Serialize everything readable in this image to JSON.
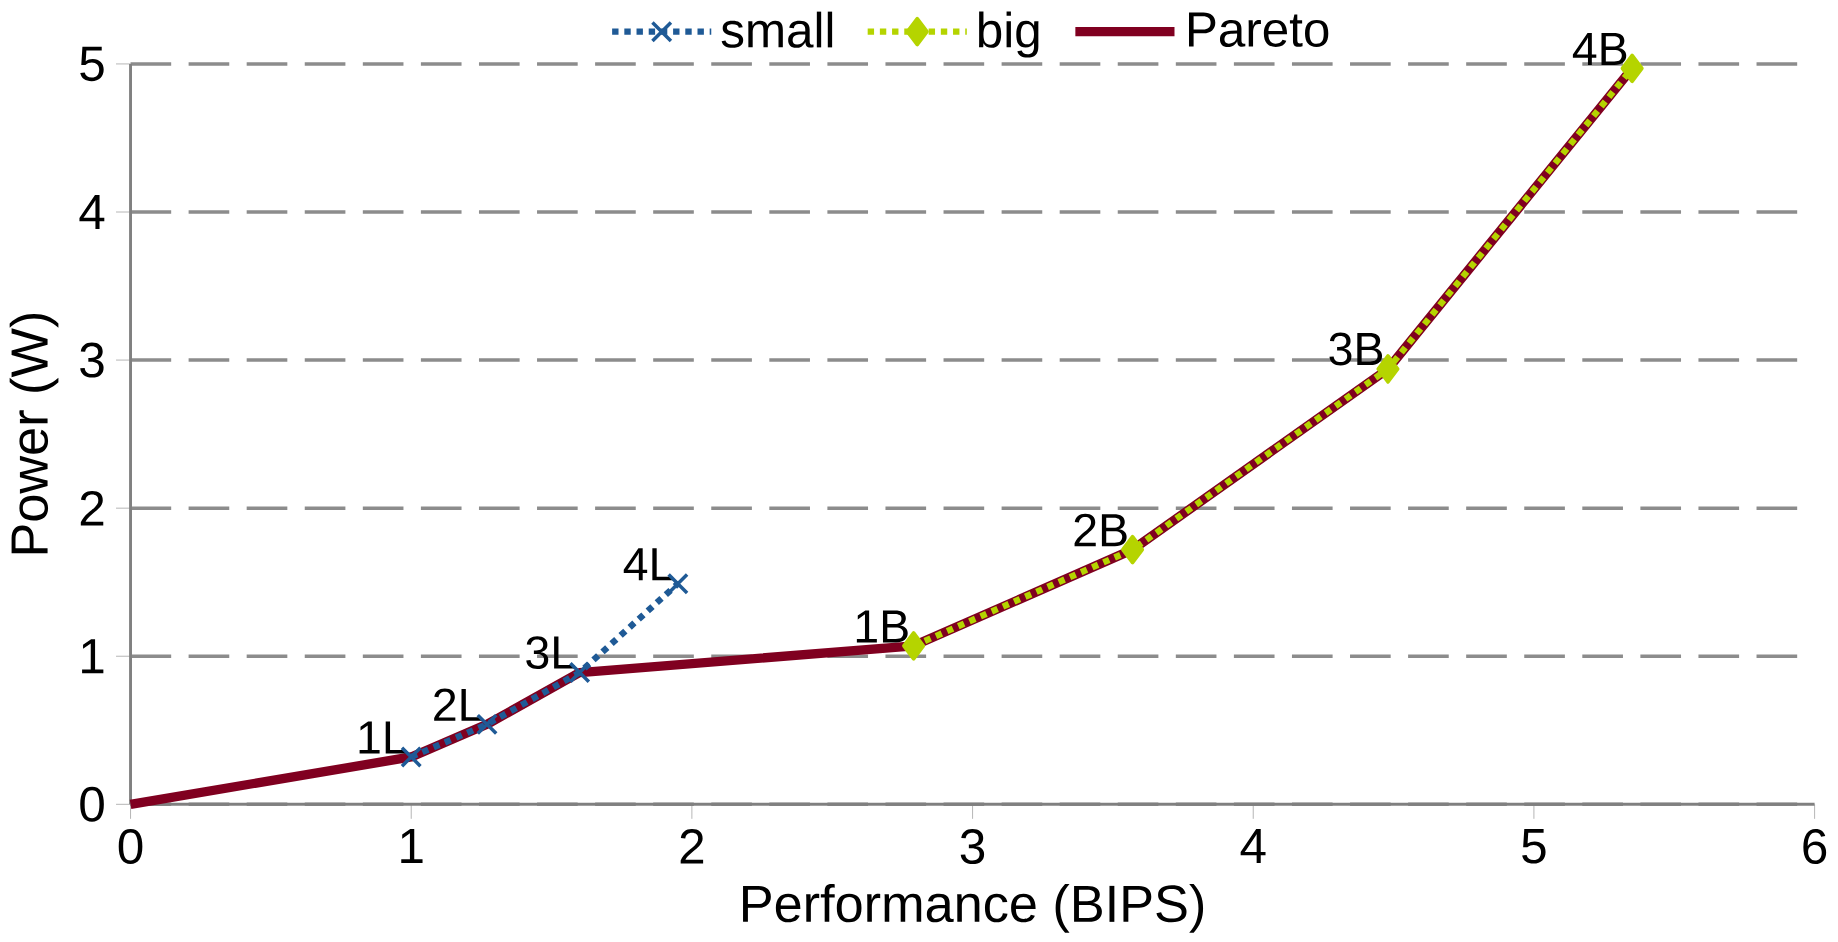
{
  "chart_data": {
    "type": "line",
    "xlabel": "Performance (BIPS)",
    "ylabel": "Power (W)",
    "xlim": [
      0,
      6
    ],
    "xticks": [
      0,
      1,
      2,
      3,
      4,
      5,
      6
    ],
    "ylim": [
      0,
      5
    ],
    "yticks": [
      0,
      1,
      2,
      3,
      4,
      5
    ],
    "grid": "y",
    "legend": "top",
    "series": [
      {
        "name": "small",
        "color": "#1f5a96",
        "line_style": "dotted",
        "marker": "cross",
        "x": [
          1.0,
          1.27,
          1.6,
          1.95
        ],
        "values": [
          0.32,
          0.54,
          0.89,
          1.49
        ]
      },
      {
        "name": "big",
        "color": "#b5d400",
        "line_style": "dotted",
        "marker": "diamond",
        "x": [
          2.79,
          3.57,
          4.48,
          5.35
        ],
        "values": [
          1.07,
          1.72,
          2.94,
          4.97
        ]
      },
      {
        "name": "Pareto",
        "color": "#800020",
        "line_style": "solid",
        "marker": "none",
        "x": [
          0,
          1.0,
          1.27,
          1.6,
          2.79,
          3.57,
          4.48,
          5.35
        ],
        "values": [
          0,
          0.32,
          0.54,
          0.89,
          1.07,
          1.72,
          2.94,
          4.97
        ]
      }
    ],
    "annotations": [
      {
        "text": "1L",
        "x": 1.0,
        "y": 0.32
      },
      {
        "text": "2L",
        "x": 1.27,
        "y": 0.54
      },
      {
        "text": "3L",
        "x": 1.6,
        "y": 0.89
      },
      {
        "text": "4L",
        "x": 1.95,
        "y": 1.49
      },
      {
        "text": "1B",
        "x": 2.79,
        "y": 1.07
      },
      {
        "text": "2B",
        "x": 3.57,
        "y": 1.72
      },
      {
        "text": "3B",
        "x": 4.48,
        "y": 2.94
      },
      {
        "text": "4B",
        "x": 5.35,
        "y": 4.97
      }
    ]
  }
}
